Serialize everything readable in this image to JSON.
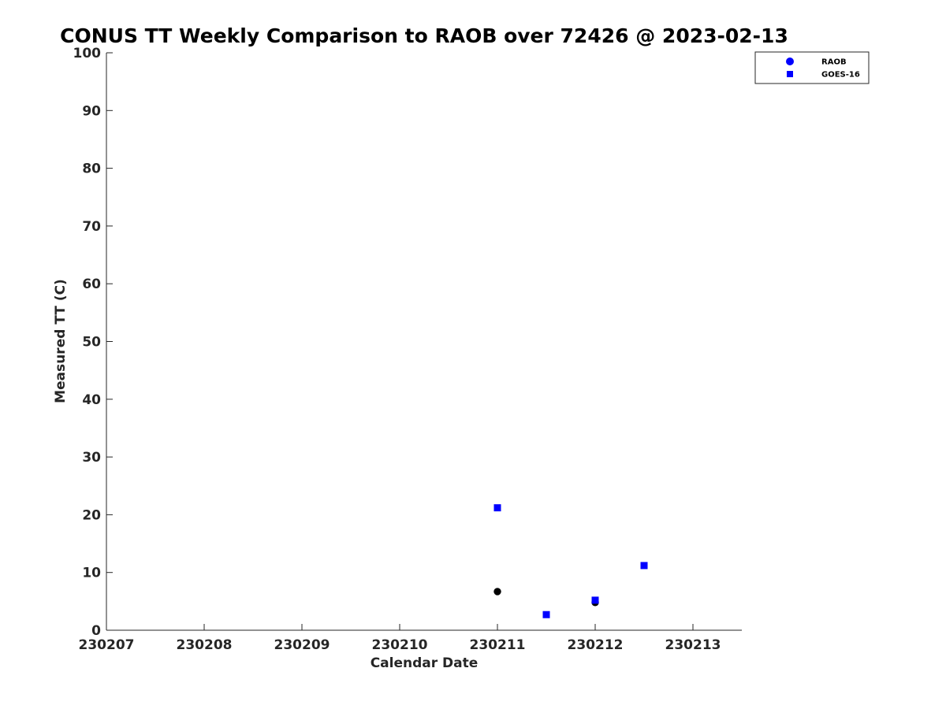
{
  "chart_data": {
    "type": "scatter",
    "title": "CONUS TT Weekly Comparison to RAOB over 72426 @ 2023-02-13",
    "xlabel": "Calendar Date",
    "ylabel": "Measured TT (C)",
    "xlim": [
      230207,
      230213.5
    ],
    "ylim": [
      0,
      100
    ],
    "x_ticks": [
      230207,
      230208,
      230209,
      230210,
      230211,
      230212,
      230213
    ],
    "x_tick_labels": [
      "230207",
      "230208",
      "230209",
      "230210",
      "230211",
      "230212",
      "230213"
    ],
    "y_ticks": [
      0,
      10,
      20,
      30,
      40,
      50,
      60,
      70,
      80,
      90,
      100
    ],
    "y_tick_labels": [
      "0",
      "10",
      "20",
      "30",
      "40",
      "50",
      "60",
      "70",
      "80",
      "90",
      "100"
    ],
    "grid": false,
    "legend_position": "top-right",
    "series": [
      {
        "name": "RAOB",
        "marker": "circle",
        "legend_color": "#0000ff",
        "color": "#000000",
        "points": [
          {
            "x": 230211.0,
            "y": 6.7
          },
          {
            "x": 230212.0,
            "y": 4.8
          }
        ]
      },
      {
        "name": "GOES-16",
        "marker": "square",
        "legend_color": "#0000ff",
        "color": "#0000ff",
        "points": [
          {
            "x": 230211.0,
            "y": 21.2
          },
          {
            "x": 230211.5,
            "y": 2.7
          },
          {
            "x": 230212.0,
            "y": 5.2
          },
          {
            "x": 230212.5,
            "y": 11.2
          }
        ]
      }
    ]
  }
}
